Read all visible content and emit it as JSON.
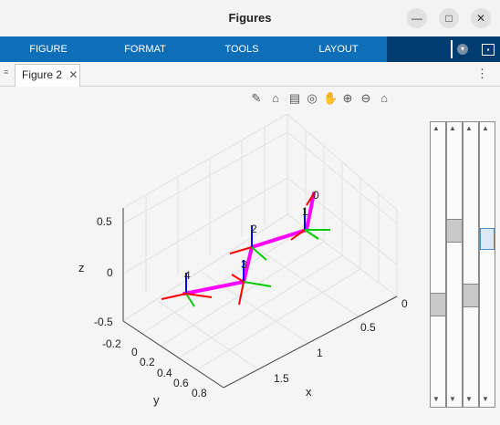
{
  "window": {
    "title": "Figures"
  },
  "ribbon": {
    "tabs": [
      "FIGURE",
      "FORMAT",
      "TOOLS",
      "LAYOUT"
    ]
  },
  "doc_tab": {
    "label": "Figure 2"
  },
  "axes": {
    "xlabel": "x",
    "ylabel": "y",
    "zlabel": "z",
    "z_ticks": [
      "0.5",
      "0",
      "-0.5"
    ],
    "y_ticks": [
      "-0.2",
      "0",
      "0.2",
      "0.4",
      "0.6",
      "0.8"
    ],
    "x_ticks": [
      "0",
      "0.5",
      "1",
      "1.5"
    ]
  },
  "frames": [
    "0",
    "1",
    "2",
    "3",
    "4"
  ],
  "colors": {
    "link": "#ff00ff",
    "x_axis": "#ff0000",
    "y_axis": "#00cc00",
    "z_axis": "#0000ff",
    "ribbon": "#0e6eb8"
  }
}
